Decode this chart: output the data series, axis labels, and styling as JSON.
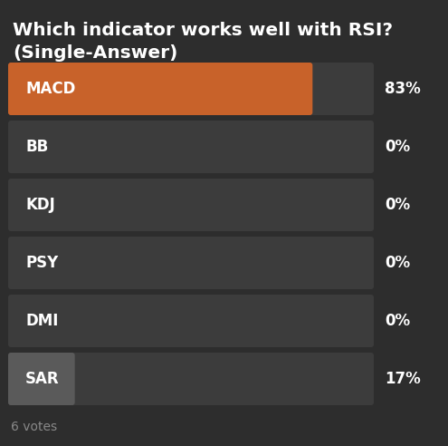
{
  "title_line1": "Which indicator works well with RSI?",
  "title_line2": "(Single-Answer)",
  "categories": [
    "MACD",
    "BB",
    "KDJ",
    "PSY",
    "DMI",
    "SAR"
  ],
  "values": [
    83,
    0,
    0,
    0,
    0,
    17
  ],
  "labels": [
    "83%",
    "0%",
    "0%",
    "0%",
    "0%",
    "17%"
  ],
  "bg_color": "#2d2d2d",
  "bar_bg_color": "#3c3c3c",
  "bar_fill_color": "#c8622a",
  "sar_fill_color": "#5a5a5a",
  "text_color": "#ffffff",
  "votes_color": "#888888",
  "votes_text": "6 votes",
  "title_fontsize": 14.5,
  "label_fontsize": 12,
  "pct_fontsize": 12,
  "votes_fontsize": 10,
  "fig_width": 4.95,
  "fig_height": 4.92,
  "dpi": 100
}
